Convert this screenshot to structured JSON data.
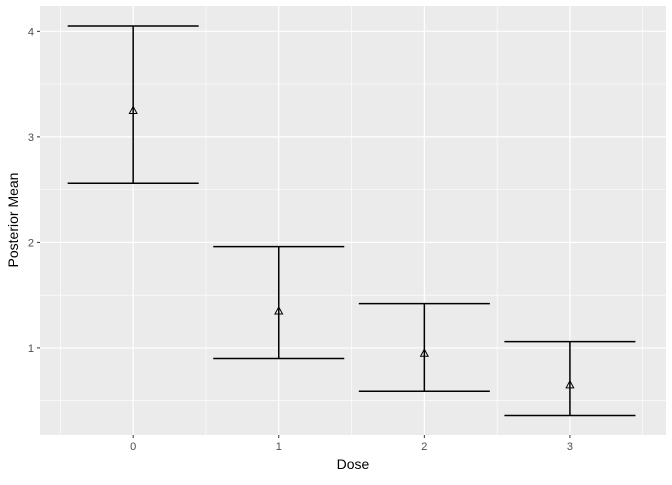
{
  "chart_data": {
    "type": "errorbar",
    "title": "",
    "xlabel": "Dose",
    "ylabel": "Posterior Mean",
    "categories": [
      "0",
      "1",
      "2",
      "3"
    ],
    "x": [
      0,
      1,
      2,
      3
    ],
    "mean": [
      3.25,
      1.35,
      0.95,
      0.65
    ],
    "upper": [
      4.05,
      1.96,
      1.42,
      1.06
    ],
    "lower": [
      2.56,
      0.9,
      0.59,
      0.36
    ],
    "xlim": [
      -0.64,
      3.66
    ],
    "ylim": [
      0.175,
      4.24
    ],
    "yticks": [
      1,
      2,
      3,
      4
    ],
    "xticks": [
      0,
      1,
      2,
      3
    ],
    "marker": "open-triangle",
    "grid": true,
    "panel_background": "#ebebeb",
    "grid_color": "#ffffff",
    "line_color": "#000000"
  }
}
